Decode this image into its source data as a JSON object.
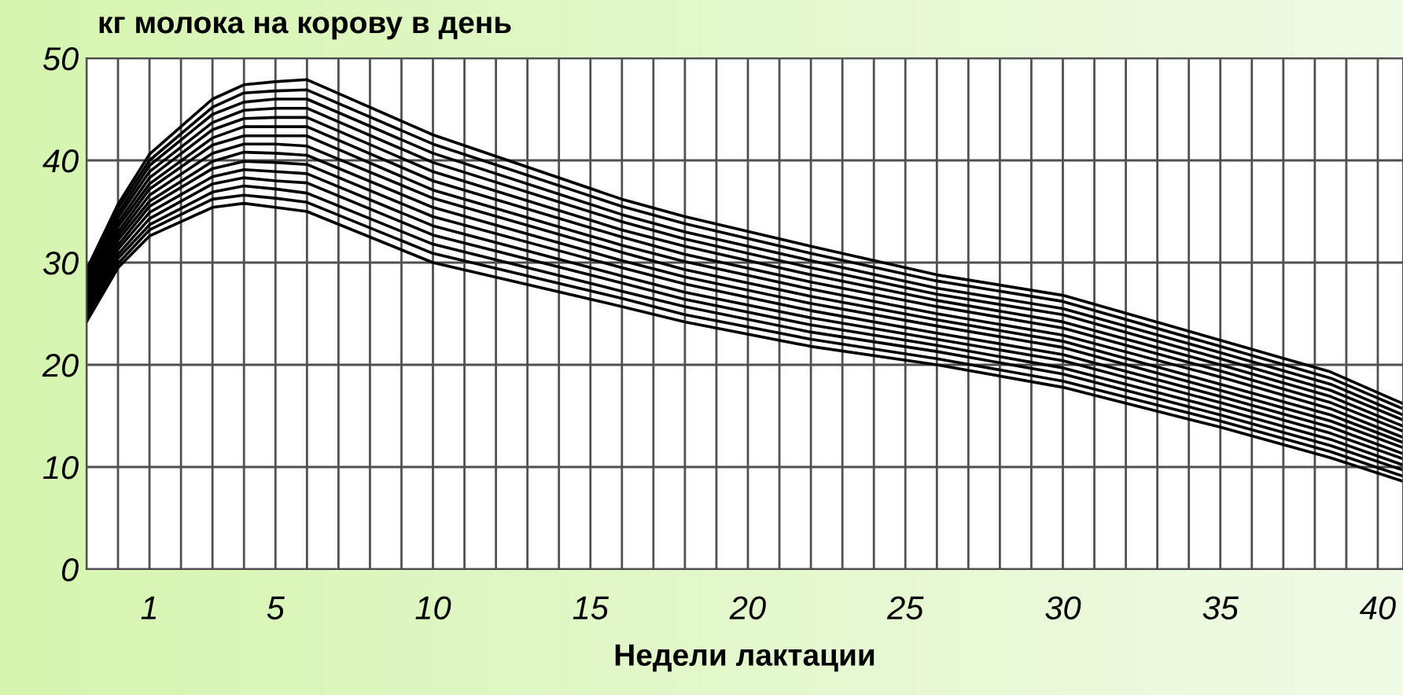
{
  "chart_data": {
    "type": "line",
    "title": "кг молока на корову в день",
    "xlabel": "Недели лактации",
    "x": [
      -1,
      0,
      1,
      3,
      4,
      5,
      6,
      10,
      16,
      18,
      22,
      26,
      30,
      35,
      38.5,
      40.8
    ],
    "xlim": [
      -1,
      40.8
    ],
    "xticks": [
      {
        "value": -1,
        "label": null
      },
      {
        "value": 0,
        "label": null
      },
      1,
      {
        "value": 2,
        "label": null
      },
      {
        "value": 3,
        "label": null
      },
      {
        "value": 4,
        "label": null
      },
      5,
      {
        "value": 6,
        "label": null
      },
      {
        "value": 7,
        "label": null
      },
      {
        "value": 8,
        "label": null
      },
      {
        "value": 9,
        "label": null
      },
      10,
      {
        "value": 11,
        "label": null
      },
      {
        "value": 12,
        "label": null
      },
      {
        "value": 13,
        "label": null
      },
      {
        "value": 14,
        "label": null
      },
      15,
      {
        "value": 16,
        "label": null
      },
      {
        "value": 17,
        "label": null
      },
      {
        "value": 18,
        "label": null
      },
      {
        "value": 19,
        "label": null
      },
      20,
      {
        "value": 21,
        "label": null
      },
      {
        "value": 22,
        "label": null
      },
      {
        "value": 23,
        "label": null
      },
      {
        "value": 24,
        "label": null
      },
      25,
      {
        "value": 26,
        "label": null
      },
      {
        "value": 27,
        "label": null
      },
      {
        "value": 28,
        "label": null
      },
      {
        "value": 29,
        "label": null
      },
      30,
      {
        "value": 31,
        "label": null
      },
      {
        "value": 32,
        "label": null
      },
      {
        "value": 33,
        "label": null
      },
      {
        "value": 34,
        "label": null
      },
      35,
      {
        "value": 36,
        "label": null
      },
      {
        "value": 37,
        "label": null
      },
      {
        "value": 38,
        "label": null
      },
      {
        "value": 39,
        "label": null
      },
      40
    ],
    "ylim": [
      0,
      50
    ],
    "yticks": [
      0,
      10,
      20,
      30,
      40,
      50
    ],
    "grid": true,
    "series": [
      {
        "color": "#000000",
        "values": [
          24.2,
          29.5,
          32.6,
          35.4,
          35.8,
          35.4,
          35.0,
          30.0,
          25.7,
          24.2,
          21.8,
          20.0,
          17.8,
          13.9,
          10.9,
          8.6
        ]
      },
      {
        "color": "#000000",
        "values": [
          24.6,
          29.9,
          33.2,
          36.2,
          36.6,
          36.3,
          35.9,
          30.9,
          26.5,
          24.9,
          22.5,
          20.6,
          18.4,
          14.5,
          11.5,
          9.1
        ]
      },
      {
        "color": "#000000",
        "values": [
          24.9,
          30.4,
          33.7,
          36.9,
          37.5,
          37.2,
          36.8,
          31.8,
          27.2,
          25.7,
          23.2,
          21.3,
          19.1,
          15.1,
          12.1,
          9.7
        ]
      },
      {
        "color": "#000000",
        "values": [
          25.3,
          30.8,
          34.3,
          37.7,
          38.3,
          38.0,
          37.8,
          32.7,
          28.0,
          26.4,
          23.9,
          21.9,
          19.7,
          15.7,
          12.7,
          10.2
        ]
      },
      {
        "color": "#000000",
        "values": [
          25.7,
          31.3,
          34.9,
          38.4,
          39.1,
          38.9,
          38.7,
          33.6,
          28.7,
          27.1,
          24.6,
          22.5,
          20.4,
          16.3,
          13.3,
          10.8
        ]
      },
      {
        "color": "#000000",
        "values": [
          26.0,
          31.7,
          35.5,
          39.2,
          39.9,
          39.8,
          39.6,
          34.5,
          29.5,
          27.9,
          25.3,
          23.1,
          21.0,
          16.9,
          13.9,
          11.3
        ]
      },
      {
        "color": "#000000",
        "values": [
          26.4,
          32.2,
          36.0,
          39.9,
          40.8,
          40.7,
          40.5,
          35.4,
          30.2,
          28.6,
          26.0,
          23.8,
          21.7,
          17.5,
          14.5,
          11.9
        ]
      },
      {
        "color": "#000000",
        "values": [
          26.8,
          32.6,
          36.6,
          40.7,
          41.6,
          41.6,
          41.4,
          36.3,
          31.0,
          29.3,
          26.7,
          24.4,
          22.3,
          18.1,
          15.1,
          12.4
        ]
      },
      {
        "color": "#000000",
        "values": [
          27.1,
          33.0,
          37.2,
          41.5,
          42.4,
          42.4,
          42.4,
          37.1,
          31.7,
          30.1,
          27.4,
          25.0,
          22.9,
          18.8,
          15.7,
          12.9
        ]
      },
      {
        "color": "#000000",
        "values": [
          27.5,
          33.5,
          37.7,
          42.2,
          43.3,
          43.3,
          43.3,
          38.0,
          32.5,
          30.8,
          28.1,
          25.7,
          23.6,
          19.4,
          16.3,
          13.5
        ]
      },
      {
        "color": "#000000",
        "values": [
          27.8,
          33.9,
          38.3,
          43.0,
          44.1,
          44.2,
          44.2,
          38.9,
          33.2,
          31.6,
          28.8,
          26.3,
          24.2,
          20.0,
          16.9,
          14.0
        ]
      },
      {
        "color": "#000000",
        "values": [
          28.2,
          34.4,
          38.9,
          43.7,
          44.9,
          45.1,
          45.1,
          39.8,
          34.0,
          32.3,
          29.5,
          26.9,
          24.9,
          20.6,
          17.5,
          14.6
        ]
      },
      {
        "color": "#000000",
        "values": [
          28.6,
          34.8,
          39.5,
          44.5,
          45.7,
          46.0,
          46.0,
          40.7,
          34.7,
          33.0,
          30.2,
          27.5,
          25.5,
          21.2,
          18.1,
          15.1
        ]
      },
      {
        "color": "#000000",
        "values": [
          28.9,
          35.3,
          40.0,
          45.2,
          46.6,
          46.8,
          46.9,
          41.6,
          35.5,
          33.8,
          30.9,
          28.2,
          26.2,
          21.8,
          18.7,
          15.7
        ]
      },
      {
        "color": "#000000",
        "values": [
          29.3,
          35.7,
          40.6,
          46.0,
          47.4,
          47.7,
          47.9,
          42.5,
          36.2,
          34.5,
          31.6,
          28.8,
          26.8,
          22.4,
          19.3,
          16.2
        ]
      }
    ]
  }
}
